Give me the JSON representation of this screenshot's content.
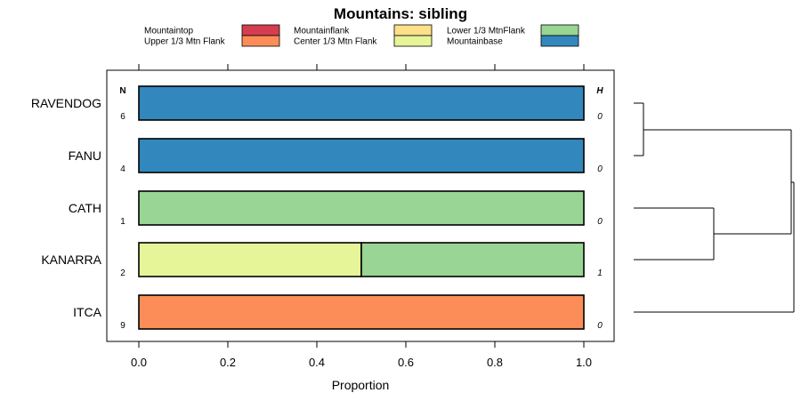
{
  "chart_data": {
    "type": "bar",
    "orientation": "horizontal",
    "stacked": true,
    "title": "Mountains: sibling",
    "xlabel": "Proportion",
    "xlim": [
      0,
      1
    ],
    "x_ticks": [
      "0.0",
      "0.2",
      "0.4",
      "0.6",
      "0.8",
      "1.0"
    ],
    "n_header": "N",
    "h_header": "H",
    "categories": [
      "RAVENDOG",
      "FANU",
      "CATH",
      "KANARRA",
      "ITCA"
    ],
    "n_values": [
      6,
      4,
      1,
      2,
      9
    ],
    "h_values": [
      0,
      0,
      0,
      1,
      0
    ],
    "series": [
      {
        "name": "Mountaintop",
        "color": "#d53e4f",
        "values": [
          0,
          0,
          0,
          0,
          0
        ]
      },
      {
        "name": "Upper 1/3 Mtn Flank",
        "color": "#fc8d59",
        "values": [
          0,
          0,
          0,
          0,
          1
        ]
      },
      {
        "name": "Mountainflank",
        "color": "#fee08b",
        "values": [
          0,
          0,
          0,
          0,
          0
        ]
      },
      {
        "name": "Center 1/3 Mtn Flank",
        "color": "#e6f598",
        "values": [
          0,
          0,
          0,
          0.5,
          0
        ]
      },
      {
        "name": "Lower 1/3 MtnFlank",
        "color": "#99d594",
        "values": [
          0,
          0,
          1,
          0.5,
          0
        ]
      },
      {
        "name": "Mountainbase",
        "color": "#3288bd",
        "values": [
          1,
          1,
          0,
          0,
          0
        ]
      }
    ],
    "legend": "top",
    "dendrogram": true
  }
}
